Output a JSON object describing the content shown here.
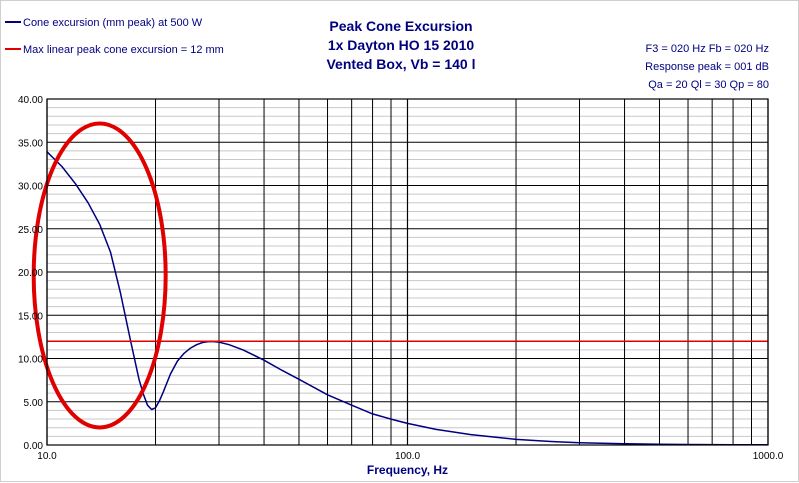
{
  "chart_data": {
    "type": "line",
    "title_lines": [
      "Peak Cone Excursion",
      "1x Dayton HO 15 2010",
      "Vented Box, Vb = 140 l"
    ],
    "info_lines": [
      "F3 = 020 Hz  Fb = 020 Hz",
      "Response peak = 001 dB",
      "Qa = 20  Ql = 30  Qp = 80"
    ],
    "xlabel": "Frequency, Hz",
    "ylabel": "",
    "x_scale": "log",
    "xlim": [
      10,
      1000
    ],
    "ylim": [
      0,
      40
    ],
    "x_ticks": [
      {
        "value": 10,
        "label": "10.0"
      },
      {
        "value": 100,
        "label": "100.0"
      },
      {
        "value": 1000,
        "label": "1000.0"
      }
    ],
    "y_ticks": [
      {
        "value": 0,
        "label": "0.00"
      },
      {
        "value": 5,
        "label": "5.00"
      },
      {
        "value": 10,
        "label": "10.00"
      },
      {
        "value": 15,
        "label": "15.00"
      },
      {
        "value": 20,
        "label": "20.00"
      },
      {
        "value": 25,
        "label": "25.00"
      },
      {
        "value": 30,
        "label": "30.00"
      },
      {
        "value": 35,
        "label": "35.00"
      },
      {
        "value": 40,
        "label": "40.00"
      }
    ],
    "y_minor_step": 1,
    "grid": true,
    "legend_position": "top-left",
    "series": [
      {
        "name": "Cone excursion (mm peak) at 500 W",
        "color": "#000080",
        "x": [
          10,
          11,
          12,
          13,
          14,
          15,
          16,
          17,
          18,
          18.5,
          19,
          19.5,
          20,
          20.5,
          21,
          22,
          23,
          24,
          25,
          26,
          27,
          28,
          29,
          30,
          32,
          35,
          40,
          45,
          50,
          60,
          70,
          80,
          90,
          100,
          120,
          150,
          200,
          250,
          300,
          400,
          500,
          600,
          800,
          1000
        ],
        "y": [
          33.9,
          32.2,
          30.2,
          28.0,
          25.5,
          22.3,
          17.5,
          12.3,
          7.6,
          5.9,
          4.6,
          4.1,
          4.3,
          5.1,
          6.1,
          8.2,
          9.7,
          10.6,
          11.2,
          11.6,
          11.85,
          11.95,
          11.95,
          11.9,
          11.6,
          11.0,
          9.8,
          8.6,
          7.6,
          5.8,
          4.6,
          3.6,
          3.0,
          2.5,
          1.8,
          1.2,
          0.65,
          0.4,
          0.27,
          0.15,
          0.09,
          0.06,
          0.03,
          0.02
        ]
      },
      {
        "name": "Max linear peak cone excursion = 12 mm",
        "color": "#e00000",
        "x": [
          10,
          1000
        ],
        "y": [
          12,
          12
        ]
      }
    ],
    "annotations": [
      {
        "type": "ellipse",
        "color": "#e00000",
        "center": [
          14,
          19.6
        ],
        "note": "red circle highlighting the low-frequency excursion"
      }
    ]
  }
}
